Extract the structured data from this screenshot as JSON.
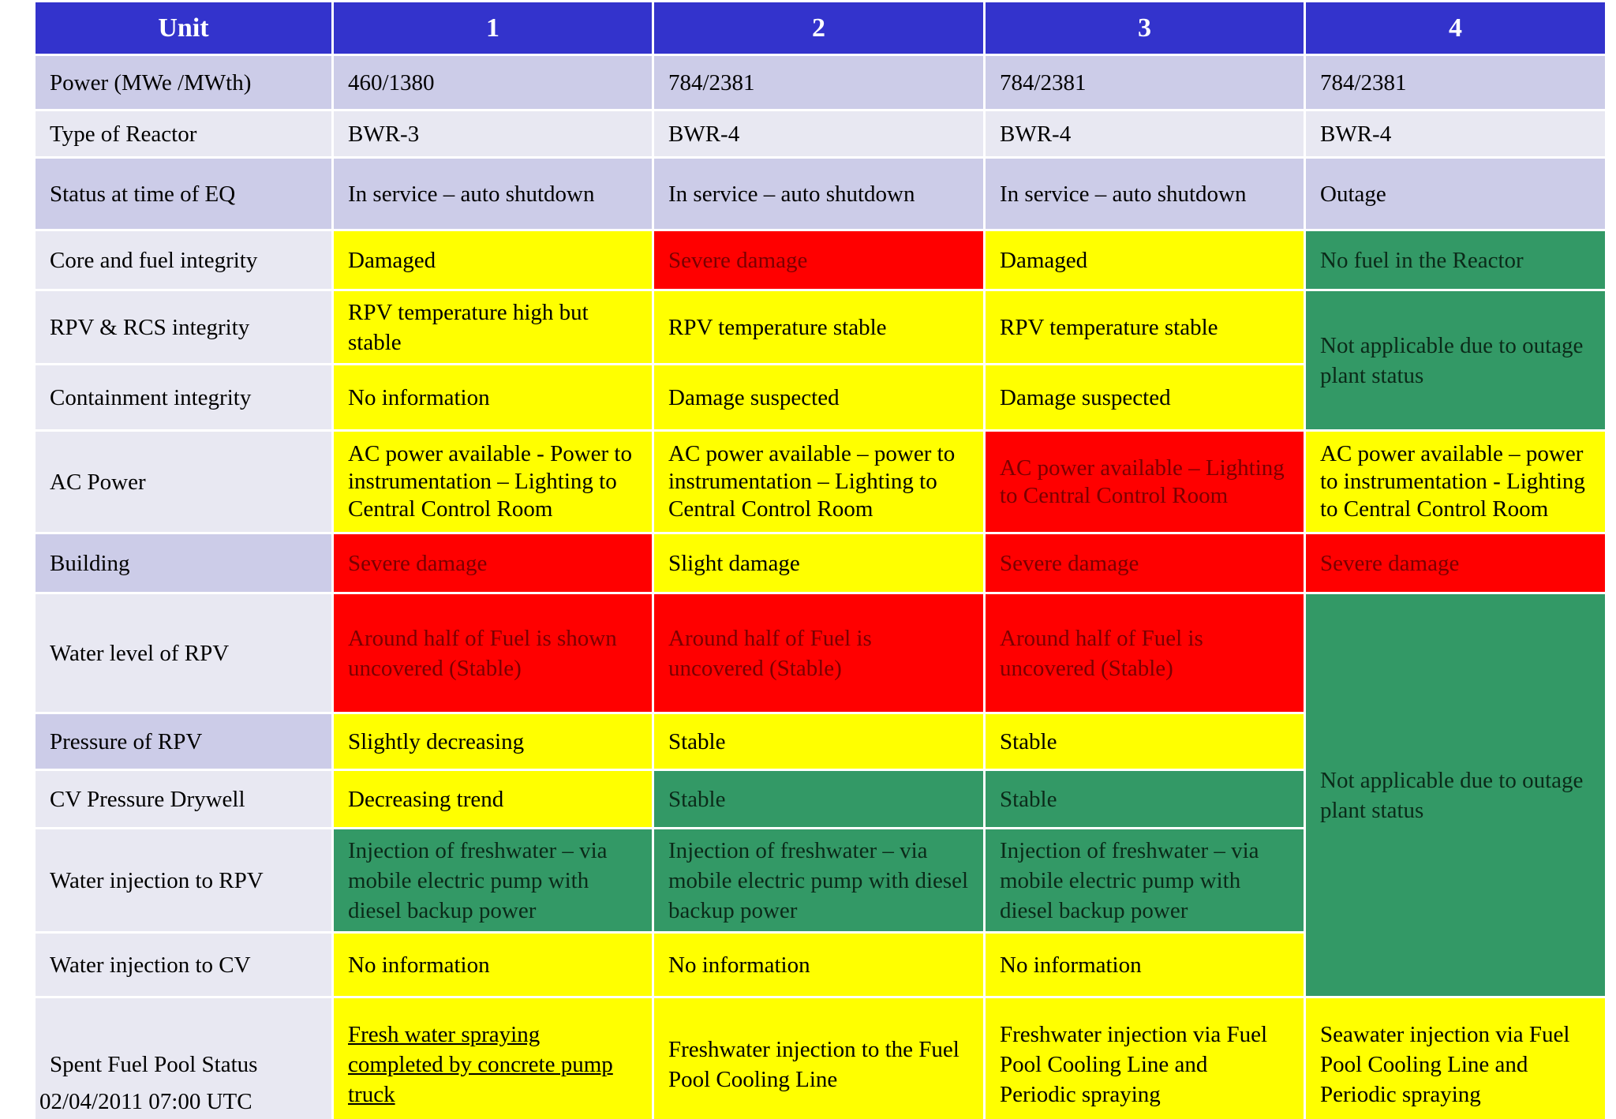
{
  "header": {
    "unit_label": "Unit",
    "units": [
      "1",
      "2",
      "3",
      "4"
    ]
  },
  "rows": {
    "power": {
      "label": "Power (MWe /MWth)",
      "u1": "460/1380",
      "u2": "784/2381",
      "u3": "784/2381",
      "u4": "784/2381"
    },
    "reactor_type": {
      "label": "Type of Reactor",
      "u1": "BWR-3",
      "u2": "BWR-4",
      "u3": "BWR-4",
      "u4": "BWR-4"
    },
    "status_eq": {
      "label": "Status at time of EQ",
      "u1": "In service – auto shutdown",
      "u2": "In service – auto shutdown",
      "u3": "In service – auto shutdown",
      "u4": "Outage"
    },
    "core_fuel": {
      "label": "Core and fuel integrity",
      "u1": "Damaged",
      "u2": "Severe damage",
      "u3": "Damaged",
      "u4": "No fuel in the Reactor"
    },
    "rpv_rcs": {
      "label": "RPV & RCS integrity",
      "u1": "RPV temperature high but stable",
      "u2": "RPV temperature stable",
      "u3": "RPV temperature stable",
      "u4": "Not applicable due to outage plant status"
    },
    "containment": {
      "label": "Containment integrity",
      "u1": "No information",
      "u2": "Damage suspected",
      "u3": "Damage suspected"
    },
    "ac_power": {
      "label": "AC Power",
      "u1": "AC power available - Power to instrumentation – Lighting to Central Control Room",
      "u2": "AC power available – power to instrumentation – Lighting to Central Control Room",
      "u3": "AC power available – Lighting to Central Control Room",
      "u4": "AC power available – power to instrumentation  - Lighting to Central Control Room"
    },
    "building": {
      "label": "Building",
      "u1": "Severe damage",
      "u2": "Slight damage",
      "u3": "Severe damage",
      "u4": "Severe damage"
    },
    "water_level": {
      "label": "Water level of RPV",
      "u1": "Around half of Fuel is shown uncovered (Stable)",
      "u2": "Around half of Fuel is uncovered (Stable)",
      "u3": "Around half of Fuel is uncovered (Stable)",
      "u4": "Not applicable due to outage plant status"
    },
    "pressure_rpv": {
      "label": "Pressure of RPV",
      "u1": "Slightly decreasing",
      "u2": "Stable",
      "u3": "Stable"
    },
    "cv_pressure": {
      "label": "CV Pressure Drywell",
      "u1": "Decreasing trend",
      "u2": "Stable",
      "u3": "Stable"
    },
    "water_inj_rpv": {
      "label": "Water injection to RPV",
      "u1": "Injection of freshwater – via mobile electric pump with diesel backup power",
      "u2": "Injection of freshwater – via mobile electric pump with diesel backup power",
      "u3": "Injection of freshwater – via mobile electric pump with diesel backup power"
    },
    "water_inj_cv": {
      "label": "Water injection to CV",
      "u1": "No information",
      "u2": "No information",
      "u3": "No information"
    },
    "spent_fuel": {
      "label": "Spent Fuel Pool Status",
      "u1": "Fresh water spraying completed by concrete pump truck",
      "u2": "Freshwater injection to the Fuel Pool Cooling Line",
      "u3": "Freshwater injection via Fuel Pool Cooling Line and Periodic spraying",
      "u4": "Seawater injection via Fuel Pool Cooling Line and Periodic spraying"
    }
  },
  "footer": {
    "date": "02/04/2011 07:00 UTC"
  },
  "colors": {
    "header": "#3333cc",
    "yellow": "#ffff00",
    "red": "#ff0000",
    "green": "#339966",
    "label_dark": "#cccce8",
    "label_light": "#e8e8f2"
  }
}
